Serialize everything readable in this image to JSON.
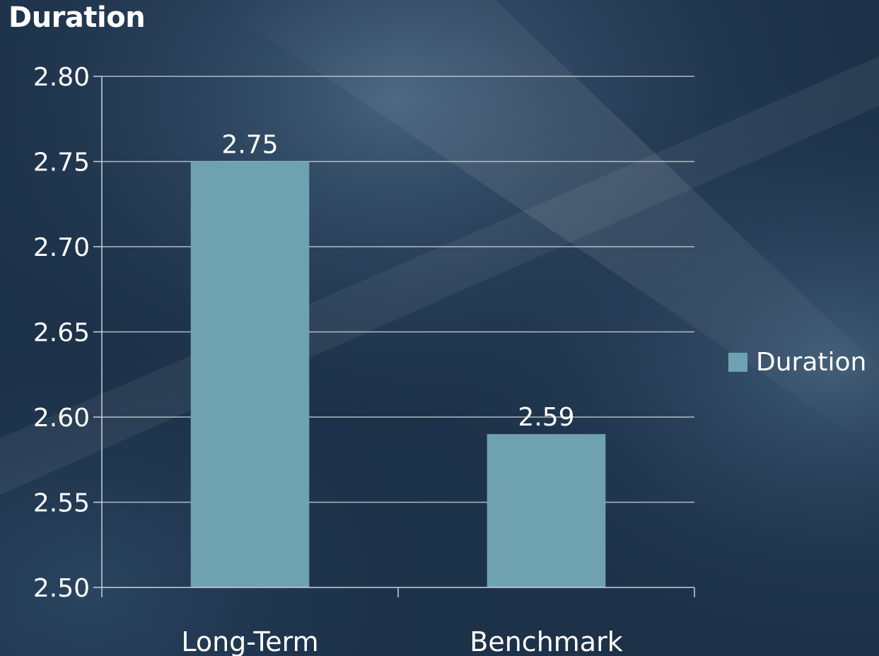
{
  "title": "Duration",
  "colors": {
    "bar": "#6fa2b1",
    "gridline": "#c8d2dc",
    "axis": "#c8d2dc",
    "text": "#ffffff",
    "background": "#1f3550"
  },
  "legend": {
    "label": "Duration",
    "position": "right"
  },
  "chart_data": {
    "type": "bar",
    "title": "Duration",
    "categories": [
      "Long-Term",
      "Benchmark"
    ],
    "series": [
      {
        "name": "Duration",
        "values": [
          2.75,
          2.59
        ]
      }
    ],
    "data_labels": [
      "2.75",
      "2.59"
    ],
    "ylim": [
      2.5,
      2.8
    ],
    "yticks": [
      "2.50",
      "2.55",
      "2.60",
      "2.65",
      "2.70",
      "2.75",
      "2.80"
    ],
    "xlabel": "",
    "ylabel": "",
    "grid": true,
    "legend": "right"
  }
}
